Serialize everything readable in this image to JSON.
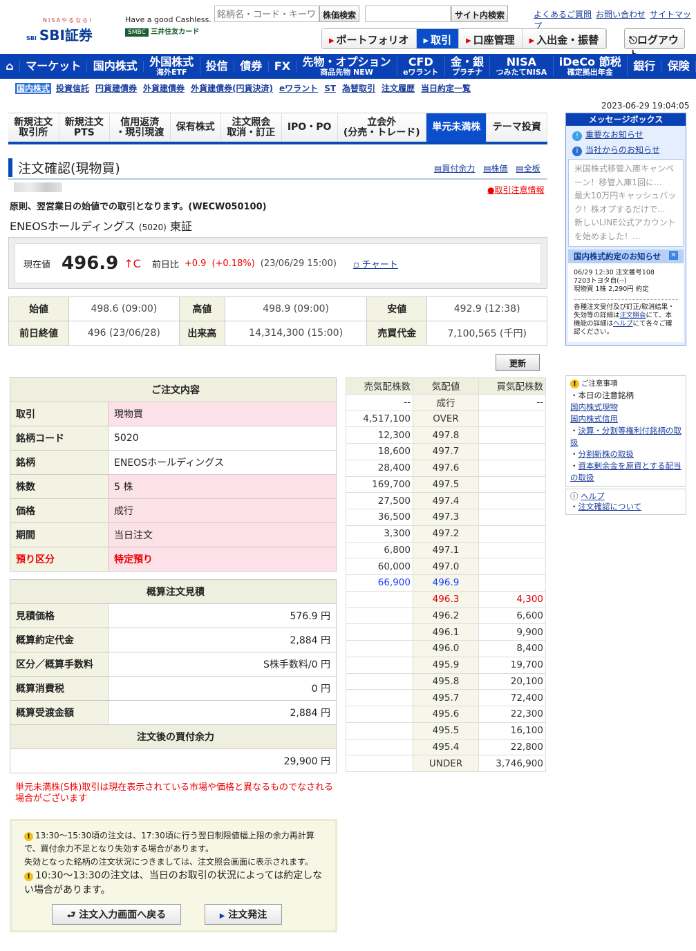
{
  "header": {
    "logo_tag": "NISAやるなら!",
    "logo": "SBI証券",
    "ad_line": "Have a good Cashless.",
    "ad_smbc": "SMBC",
    "ad_card": "三井住友カード",
    "stock_search_placeholder": "銘柄名・コード・キーワ",
    "stock_search_button": "株価検索",
    "site_search_value": "",
    "site_search_button": "サイト内検索",
    "links": [
      "よくあるご質問",
      "お問い合わせ",
      "サイトマップ"
    ],
    "menu": [
      "ポートフォリオ",
      "取引",
      "口座管理",
      "入出金・振替"
    ],
    "active_menu": "取引",
    "logout": "ログアウト"
  },
  "gnav": [
    {
      "t": "⌂"
    },
    {
      "t": "マーケット"
    },
    {
      "t": "国内株式"
    },
    {
      "t": "外国株式",
      "s": "海外ETF"
    },
    {
      "t": "投信"
    },
    {
      "t": "債券"
    },
    {
      "t": "FX"
    },
    {
      "t": "先物・オプション",
      "s": "商品先物 NEW"
    },
    {
      "t": "CFD",
      "s": "eワラント"
    },
    {
      "t": "金・銀",
      "s": "プラチナ"
    },
    {
      "t": "NISA",
      "s": "つみたてNISA"
    },
    {
      "t": "iDeCo 節税",
      "s": "確定拠出年金"
    },
    {
      "t": "銀行"
    },
    {
      "t": "保険"
    }
  ],
  "subnav": [
    "国内株式",
    "投資信託",
    "円貨建債券",
    "外貨建債券",
    "外貨建債券(円貨決済)",
    "eワラント",
    "ST",
    "為替取引",
    "注文履歴",
    "当日約定一覧"
  ],
  "tabs": [
    "新規注文\n取引所",
    "新規注文\nPTS",
    "信用返済\n・現引現渡",
    "保有株式",
    "注文照会\n取消・訂正",
    "IPO・PO",
    "立会外\n(分売・トレード)",
    "単元未満株",
    "テーマ投資"
  ],
  "active_tab": "単元未満株",
  "page": {
    "title": "注文確認(現物買)",
    "links": [
      "買付余力",
      "株価",
      "全板"
    ],
    "warning_link": "取引注意情報",
    "notice": "原則、翌営業日の始値での取引となります。(WECW050100)",
    "stock_name": "ENEOSホールディングス",
    "stock_code": "(5020)",
    "market": "東証"
  },
  "price": {
    "label": "現在値",
    "value": "496.9",
    "arrow": "↑C",
    "change_label": "前日比",
    "change": "+0.9",
    "change_pct": "(+0.18%)",
    "time": "(23/06/29 15:00)",
    "chart_link": "チャート"
  },
  "quote": [
    [
      "始値",
      "498.6 (09:00)",
      "高値",
      "498.9 (09:00)",
      "安値",
      "492.9 (12:38)"
    ],
    [
      "前日終値",
      "496 (23/06/28)",
      "出来高",
      "14,314,300 (15:00)",
      "売買代金",
      "7,100,565 (千円)"
    ]
  ],
  "refresh": "更新",
  "order": {
    "title": "ご注文内容",
    "rows": [
      [
        "取引",
        "現物買"
      ],
      [
        "銘柄コード",
        "5020"
      ],
      [
        "銘柄",
        "ENEOSホールディングス"
      ],
      [
        "株数",
        "5 株"
      ],
      [
        "価格",
        "成行"
      ],
      [
        "期間",
        "当日注文"
      ],
      [
        "預り区分",
        "特定預り"
      ]
    ]
  },
  "estimate": {
    "title": "概算注文見積",
    "rows": [
      [
        "見積価格",
        "576.9 円"
      ],
      [
        "概算約定代金",
        "2,884 円"
      ],
      [
        "区分／概算手数料",
        "S株手数料/0 円"
      ],
      [
        "概算消費税",
        "0 円"
      ],
      [
        "概算受渡金額",
        "2,884 円"
      ]
    ],
    "after_title": "注文後の買付余力",
    "after_value": "29,900 円"
  },
  "book": {
    "headers": [
      "売気配株数",
      "気配値",
      "買気配株数"
    ],
    "rows": [
      [
        "--",
        "成行",
        "--"
      ],
      [
        "4,517,100",
        "OVER",
        ""
      ],
      [
        "12,300",
        "497.8",
        ""
      ],
      [
        "18,600",
        "497.7",
        ""
      ],
      [
        "28,400",
        "497.6",
        ""
      ],
      [
        "169,700",
        "497.5",
        ""
      ],
      [
        "27,500",
        "497.4",
        ""
      ],
      [
        "36,500",
        "497.3",
        ""
      ],
      [
        "3,300",
        "497.2",
        ""
      ],
      [
        "6,800",
        "497.1",
        ""
      ],
      [
        "60,000",
        "497.0",
        ""
      ],
      [
        "66,900",
        "496.9",
        ""
      ],
      [
        "",
        "496.3",
        "4,300"
      ],
      [
        "",
        "496.2",
        "6,600"
      ],
      [
        "",
        "496.1",
        "9,900"
      ],
      [
        "",
        "496.0",
        "8,400"
      ],
      [
        "",
        "495.9",
        "19,700"
      ],
      [
        "",
        "495.8",
        "20,100"
      ],
      [
        "",
        "495.7",
        "72,400"
      ],
      [
        "",
        "495.6",
        "22,300"
      ],
      [
        "",
        "495.5",
        "16,100"
      ],
      [
        "",
        "495.4",
        "22,800"
      ],
      [
        "",
        "UNDER",
        "3,746,900"
      ]
    ]
  },
  "red_notice": "単元未満株(S株)取引は現在表示されている市場や価格と異なるものでなされる場合がございます",
  "notes": [
    "13:30〜15:30頃の注文は、17:30頃に行う翌日制限値幅上限の余力再計算で、買付余力不足となり失効する場合があります。",
    "失効となった銘柄の注文状況につきましては、注文照会画面に表示されます。",
    "10:30〜13:30の注文は、当日のお取引の状況によっては約定しない場合があります。"
  ],
  "buttons": {
    "back": "注文入力画面へ戻る",
    "submit": "注文発注"
  },
  "side": {
    "datetime": "2023-06-29 19:04:05",
    "msgbox_title": "メッセージボックス",
    "important": "重要なお知らせ",
    "company": "当社からのお知らせ",
    "news": [
      "米国株式移管入庫キャンペーン！移管入庫1回に...",
      "最大10万円キャッシュバック！株オプするだけで...",
      "新しいLINE公式アカウントを始めました！..."
    ],
    "exec_title": "国内株式約定のお知らせ",
    "exec_lines": [
      "06/29 12:30 注文番号108",
      "7203トヨタ自(--)",
      "現物買 1株 2,290円 約定"
    ],
    "exec_note_a": "各種注文受付及び訂正/取消結果・失効等の詳細は",
    "exec_note_link1": "注文照会",
    "exec_note_b": "にて、本機能の詳細は",
    "exec_note_link2": "ヘルプ",
    "exec_note_c": "にて各々ご確認ください。",
    "caution_title": "ご注意事項",
    "caution_sub": "・本日の注意銘柄",
    "caution_links": [
      "国内株式現物",
      "国内株式信用"
    ],
    "caution_items": [
      "決算・分割等権利付銘柄の取扱",
      "分割新株の取扱",
      "資本剰余金を原資とする配当の取扱"
    ],
    "help_title": "ヘルプ",
    "help_item": "注文確認について"
  },
  "colors": {
    "brand": "#0a41b4",
    "sell_highlight": "#1a3dff",
    "buy_highlight": "#e00000",
    "pink": "#fde1e8"
  }
}
